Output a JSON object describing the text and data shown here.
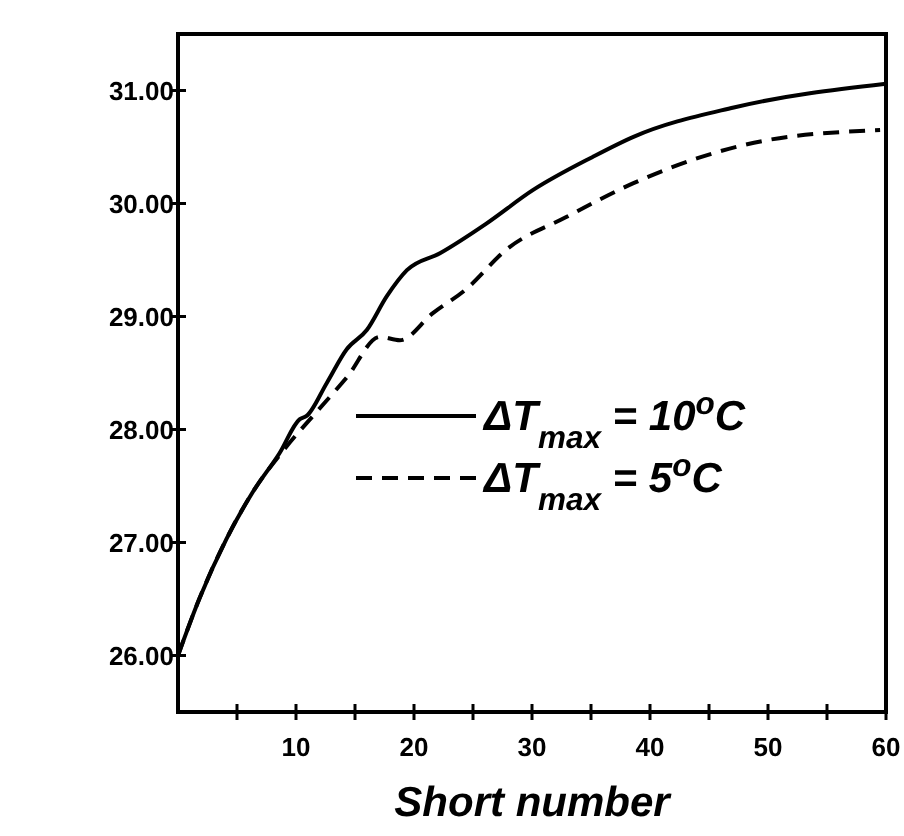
{
  "chart_data": {
    "type": "line",
    "xlabel": "Short number",
    "xlim": [
      0,
      60
    ],
    "ylim": [
      25.5,
      31.5
    ],
    "xticks": [
      {
        "value": 5,
        "label": null
      },
      10,
      {
        "value": 15,
        "label": null
      },
      20,
      {
        "value": 25,
        "label": null
      },
      30,
      {
        "value": 35,
        "label": null
      },
      40,
      {
        "value": 45,
        "label": null
      },
      50,
      {
        "value": 55,
        "label": null
      },
      60
    ],
    "yticks": [
      {
        "value": 26,
        "label": "26.00"
      },
      {
        "value": 27,
        "label": "27.00"
      },
      {
        "value": 28,
        "label": "28.00"
      },
      {
        "value": 29,
        "label": "29.00"
      },
      {
        "value": 30,
        "label": "30.00"
      },
      {
        "value": 31,
        "label": "31.00"
      }
    ],
    "grid": false,
    "legend": "right",
    "marker": "none",
    "series": [
      {
        "name": "ΔT$_{max}$ = 10$^{o}$C",
        "color": "#000000",
        "line_style": "solid",
        "x": [
          0,
          1.8,
          4.1,
          6.3,
          8.6,
          10.3,
          10.9,
          12.6,
          14.3,
          16,
          17.7,
          19.4,
          22.2,
          26.1,
          30.1,
          35.1,
          38.6,
          47.1,
          60
        ],
        "values": [
          26.0,
          26.5,
          27.03,
          27.44,
          27.79,
          28.09,
          28.12,
          28.41,
          28.71,
          28.88,
          29.18,
          29.41,
          29.56,
          29.82,
          30.12,
          30.41,
          30.59,
          30.85,
          31.06
        ]
      },
      {
        "name": "ΔT$_{max}$ = 5$^{o}$C",
        "color": "#000000",
        "line_style": "dashed",
        "x": [
          0,
          1.8,
          4.1,
          6.3,
          9.2,
          11.7,
          14.3,
          17.1,
          18.8,
          21.6,
          24.4,
          27.8,
          32.9,
          38.6,
          44.3,
          49.9,
          59.5
        ],
        "values": [
          26.0,
          26.5,
          27.03,
          27.44,
          27.85,
          28.15,
          28.46,
          28.82,
          28.79,
          29.03,
          29.24,
          29.59,
          29.88,
          30.18,
          30.41,
          30.56,
          30.65
        ]
      }
    ]
  }
}
